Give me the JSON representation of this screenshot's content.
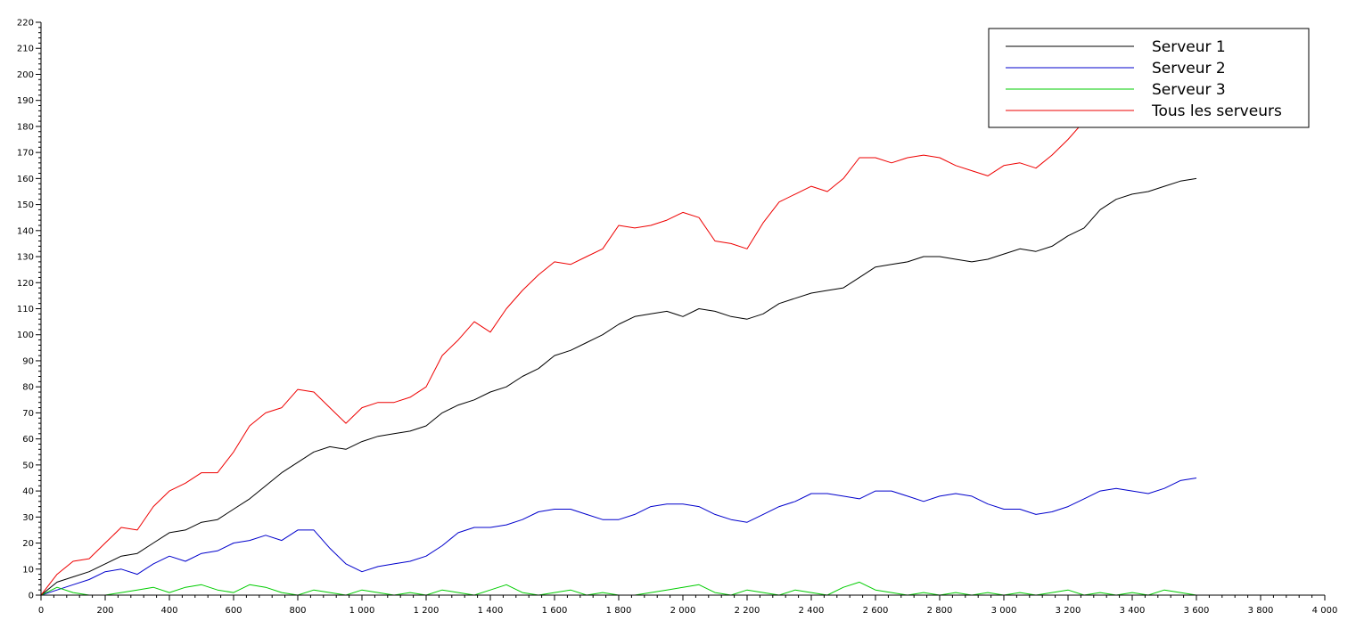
{
  "chart_data": {
    "type": "line",
    "title": "",
    "xlabel": "",
    "ylabel": "",
    "xlim": [
      0,
      4000
    ],
    "ylim": [
      0,
      220
    ],
    "x_tick_labels": [
      "0",
      "200",
      "400",
      "600",
      "800",
      "1 000",
      "1 200",
      "1 400",
      "1 600",
      "1 800",
      "2 000",
      "2 200",
      "2 400",
      "2 600",
      "2 800",
      "3 000",
      "3 200",
      "3 400",
      "3 600",
      "3 800",
      "4 000"
    ],
    "y_tick_labels": [
      "0",
      "10",
      "20",
      "30",
      "40",
      "50",
      "60",
      "70",
      "80",
      "90",
      "100",
      "110",
      "120",
      "130",
      "140",
      "150",
      "160",
      "170",
      "180",
      "190",
      "200",
      "210",
      "220"
    ],
    "grid": false,
    "legend_position": "top-right",
    "series": [
      {
        "name": "Serveur 1",
        "color": "#000000",
        "x": [
          0,
          50,
          100,
          150,
          200,
          250,
          300,
          350,
          400,
          450,
          500,
          550,
          600,
          650,
          700,
          750,
          800,
          850,
          900,
          950,
          1000,
          1050,
          1100,
          1150,
          1200,
          1250,
          1300,
          1350,
          1400,
          1450,
          1500,
          1550,
          1600,
          1650,
          1700,
          1750,
          1800,
          1850,
          1900,
          1950,
          2000,
          2050,
          2100,
          2150,
          2200,
          2250,
          2300,
          2350,
          2400,
          2450,
          2500,
          2550,
          2600,
          2650,
          2700,
          2750,
          2800,
          2850,
          2900,
          2950,
          3000,
          3050,
          3100,
          3150,
          3200,
          3250,
          3300,
          3350,
          3400,
          3450,
          3500,
          3550,
          3600
        ],
        "y": [
          0,
          5,
          7,
          9,
          12,
          15,
          16,
          20,
          24,
          25,
          28,
          29,
          33,
          37,
          42,
          47,
          51,
          55,
          57,
          56,
          59,
          61,
          62,
          63,
          65,
          70,
          73,
          75,
          78,
          80,
          84,
          87,
          92,
          94,
          97,
          100,
          104,
          107,
          108,
          109,
          107,
          110,
          109,
          107,
          106,
          108,
          112,
          114,
          116,
          117,
          118,
          122,
          126,
          127,
          128,
          130,
          130,
          129,
          128,
          129,
          131,
          133,
          132,
          134,
          138,
          141,
          148,
          152,
          154,
          155,
          157,
          159,
          160
        ]
      },
      {
        "name": "Serveur 2",
        "color": "#0000cc",
        "x": [
          0,
          50,
          100,
          150,
          200,
          250,
          300,
          350,
          400,
          450,
          500,
          550,
          600,
          650,
          700,
          750,
          800,
          850,
          900,
          950,
          1000,
          1050,
          1100,
          1150,
          1200,
          1250,
          1300,
          1350,
          1400,
          1450,
          1500,
          1550,
          1600,
          1650,
          1700,
          1750,
          1800,
          1850,
          1900,
          1950,
          2000,
          2050,
          2100,
          2150,
          2200,
          2250,
          2300,
          2350,
          2400,
          2450,
          2500,
          2550,
          2600,
          2650,
          2700,
          2750,
          2800,
          2850,
          2900,
          2950,
          3000,
          3050,
          3100,
          3150,
          3200,
          3250,
          3300,
          3350,
          3400,
          3450,
          3500,
          3550,
          3600
        ],
        "y": [
          0,
          2,
          4,
          6,
          9,
          10,
          8,
          12,
          15,
          13,
          16,
          17,
          20,
          21,
          23,
          21,
          25,
          25,
          18,
          12,
          9,
          11,
          12,
          13,
          15,
          19,
          24,
          26,
          26,
          27,
          29,
          32,
          33,
          33,
          31,
          29,
          29,
          31,
          34,
          35,
          35,
          34,
          31,
          29,
          28,
          31,
          34,
          36,
          39,
          39,
          38,
          37,
          40,
          40,
          38,
          36,
          38,
          39,
          38,
          35,
          33,
          33,
          31,
          32,
          34,
          37,
          40,
          41,
          40,
          39,
          41,
          44,
          45
        ]
      },
      {
        "name": "Serveur 3",
        "color": "#00cc00",
        "x": [
          0,
          50,
          100,
          150,
          200,
          250,
          300,
          350,
          400,
          450,
          500,
          550,
          600,
          650,
          700,
          750,
          800,
          850,
          900,
          950,
          1000,
          1050,
          1100,
          1150,
          1200,
          1250,
          1300,
          1350,
          1400,
          1450,
          1500,
          1550,
          1600,
          1650,
          1700,
          1750,
          1800,
          1850,
          1900,
          1950,
          2000,
          2050,
          2100,
          2150,
          2200,
          2250,
          2300,
          2350,
          2400,
          2450,
          2500,
          2550,
          2600,
          2650,
          2700,
          2750,
          2800,
          2850,
          2900,
          2950,
          3000,
          3050,
          3100,
          3150,
          3200,
          3250,
          3300,
          3350,
          3400,
          3450,
          3500,
          3550,
          3600
        ],
        "y": [
          0,
          3,
          1,
          0,
          0,
          1,
          2,
          3,
          1,
          3,
          4,
          2,
          1,
          4,
          3,
          1,
          0,
          2,
          1,
          0,
          2,
          1,
          0,
          1,
          0,
          2,
          1,
          0,
          2,
          4,
          1,
          0,
          1,
          2,
          0,
          1,
          0,
          0,
          1,
          2,
          3,
          4,
          1,
          0,
          2,
          1,
          0,
          2,
          1,
          0,
          3,
          5,
          2,
          1,
          0,
          1,
          0,
          1,
          0,
          1,
          0,
          1,
          0,
          1,
          2,
          0,
          1,
          0,
          1,
          0,
          2,
          1,
          0
        ]
      },
      {
        "name": "Tous les serveurs",
        "color": "#ee0000",
        "x": [
          0,
          50,
          100,
          150,
          200,
          250,
          300,
          350,
          400,
          450,
          500,
          550,
          600,
          650,
          700,
          750,
          800,
          850,
          900,
          950,
          1000,
          1050,
          1100,
          1150,
          1200,
          1250,
          1300,
          1350,
          1400,
          1450,
          1500,
          1550,
          1600,
          1650,
          1700,
          1750,
          1800,
          1850,
          1900,
          1950,
          2000,
          2050,
          2100,
          2150,
          2200,
          2250,
          2300,
          2350,
          2400,
          2450,
          2500,
          2550,
          2600,
          2650,
          2700,
          2750,
          2800,
          2850,
          2900,
          2950,
          3000,
          3050,
          3100,
          3150,
          3200,
          3250,
          3300
        ],
        "y": [
          0,
          8,
          13,
          14,
          20,
          26,
          25,
          34,
          40,
          43,
          47,
          47,
          55,
          65,
          70,
          72,
          79,
          78,
          72,
          66,
          72,
          74,
          74,
          76,
          80,
          92,
          98,
          105,
          101,
          110,
          117,
          123,
          128,
          127,
          130,
          133,
          142,
          141,
          142,
          144,
          147,
          145,
          136,
          135,
          133,
          143,
          151,
          154,
          157,
          155,
          160,
          168,
          168,
          166,
          168,
          169,
          168,
          165,
          163,
          161,
          165,
          166,
          164,
          169,
          175,
          182,
          188
        ]
      }
    ]
  }
}
